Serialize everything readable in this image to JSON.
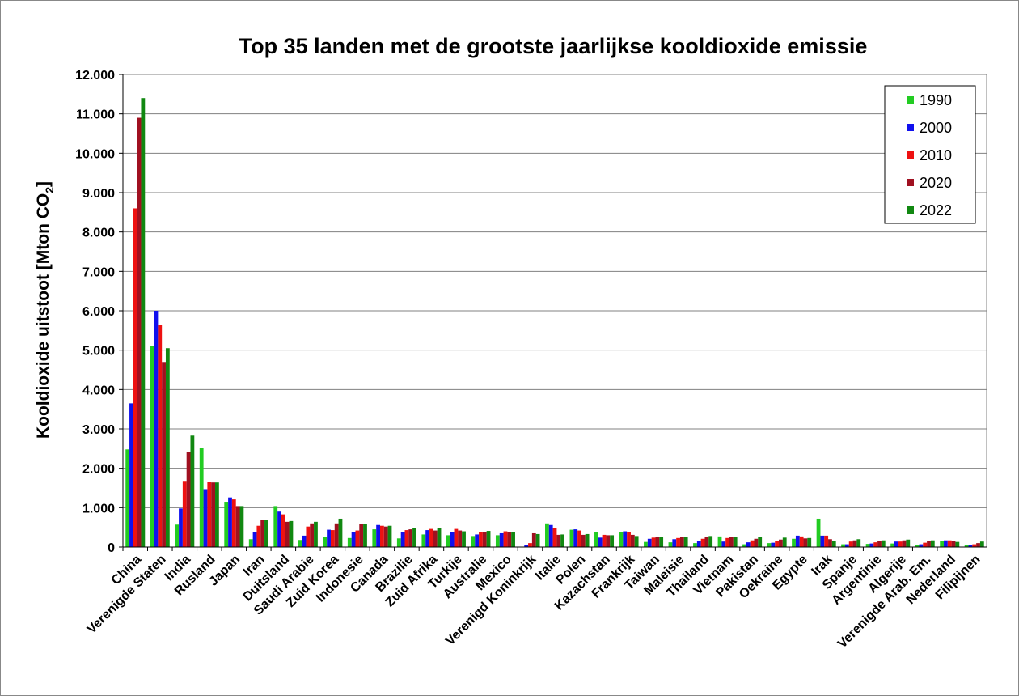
{
  "chart_data": {
    "type": "bar",
    "title": "Top 35 landen met de grootste jaarlijkse kooldioxide emissie",
    "ylabel": "Kooldioxide uitstoot [Mton CO",
    "ylabel_sub": "2",
    "ylabel_end": "]",
    "xlabel": "",
    "ylim": [
      0,
      12000
    ],
    "ytick_step": 1000,
    "yticks": [
      "0",
      "1.000",
      "2.000",
      "3.000",
      "4.000",
      "5.000",
      "6.000",
      "7.000",
      "8.000",
      "9.000",
      "10.000",
      "11.000",
      "12.000"
    ],
    "grid": true,
    "legend_position": "top-right",
    "categories": [
      "China",
      "Verenigde Staten",
      "India",
      "Rusland",
      "Japan",
      "Iran",
      "Duitsland",
      "Saudi Arabie",
      "Zuid Korea",
      "Indonesie",
      "Canada",
      "Brazilie",
      "Zuid Afrika",
      "Turkije",
      "Australie",
      "Mexico",
      "Verenigd Koninkrijk",
      "Italie",
      "Polen",
      "Kazachstan",
      "Frankrijk",
      "Taiwan",
      "Maleisie",
      "Thailand",
      "Vietnam",
      "Pakistan",
      "Oekraine",
      "Egypte",
      "Irak",
      "Spanje",
      "Argentinie",
      "Algerije",
      "Verenigde Arab. Em.",
      "Nederland",
      "Filipijnen"
    ],
    "series": [
      {
        "name": "1990",
        "color": "#22cc22",
        "values": [
          2480,
          5100,
          570,
          2520,
          1150,
          200,
          1040,
          180,
          250,
          230,
          450,
          220,
          320,
          300,
          280,
          300,
          0,
          600,
          440,
          380,
          380,
          130,
          120,
          100,
          270,
          70,
          100,
          210,
          720,
          70,
          80,
          90,
          60,
          160,
          50
        ]
      },
      {
        "name": "2000",
        "color": "#1010ee",
        "values": [
          3650,
          6000,
          980,
          1470,
          1260,
          380,
          900,
          290,
          440,
          390,
          560,
          380,
          430,
          380,
          320,
          350,
          50,
          560,
          450,
          240,
          400,
          210,
          200,
          150,
          140,
          120,
          110,
          290,
          290,
          70,
          90,
          140,
          70,
          170,
          60
        ]
      },
      {
        "name": "2010",
        "color": "#ee1111",
        "values": [
          8600,
          5650,
          1680,
          1650,
          1210,
          540,
          830,
          520,
          430,
          420,
          540,
          430,
          460,
          460,
          370,
          400,
          100,
          480,
          420,
          310,
          380,
          240,
          230,
          210,
          230,
          170,
          160,
          270,
          290,
          140,
          120,
          140,
          110,
          170,
          70
        ]
      },
      {
        "name": "2020",
        "color": "#a01020",
        "values": [
          10900,
          4700,
          2420,
          1640,
          1040,
          680,
          640,
          600,
          600,
          580,
          520,
          450,
          420,
          420,
          390,
          390,
          350,
          310,
          310,
          300,
          310,
          250,
          250,
          250,
          250,
          210,
          190,
          220,
          200,
          170,
          150,
          170,
          160,
          150,
          100
        ]
      },
      {
        "name": "2022",
        "color": "#118811",
        "values": [
          11400,
          5050,
          2830,
          1640,
          1040,
          690,
          660,
          640,
          720,
          580,
          540,
          480,
          480,
          400,
          410,
          380,
          330,
          320,
          330,
          300,
          280,
          260,
          260,
          280,
          260,
          250,
          240,
          230,
          160,
          200,
          170,
          190,
          170,
          130,
          140
        ]
      }
    ]
  }
}
